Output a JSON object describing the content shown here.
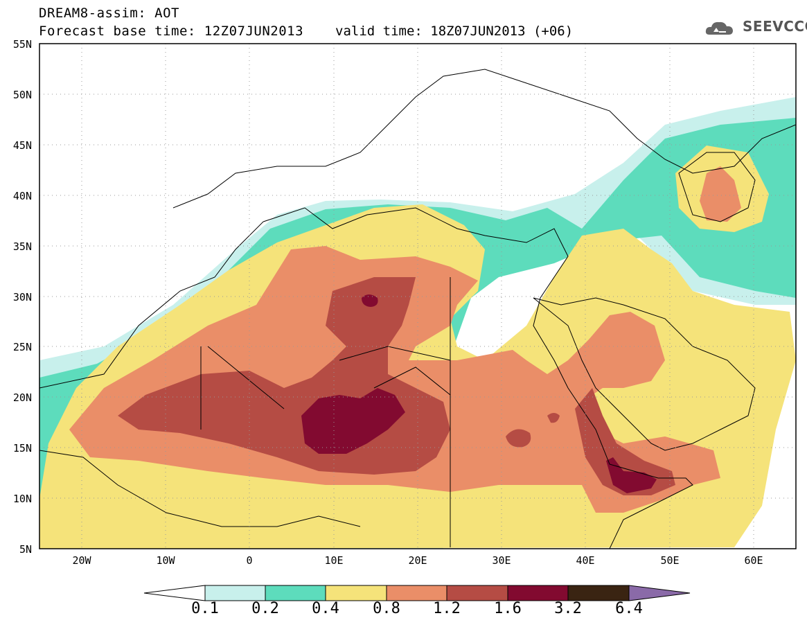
{
  "header": {
    "title_line1": "DREAM8-assim: AOT",
    "title_line2": "Forecast base time: 12Z07JUN2013",
    "valid_time": "valid time: 18Z07JUN2013 (+06)",
    "logo_text": "SEEVCCC"
  },
  "axes": {
    "lat_labels": [
      "55N",
      "50N",
      "45N",
      "40N",
      "35N",
      "30N",
      "25N",
      "20N",
      "15N",
      "10N",
      "5N"
    ],
    "lon_labels": [
      "20W",
      "10W",
      "0",
      "10E",
      "20E",
      "30E",
      "40E",
      "50E",
      "60E"
    ],
    "lon_range": [
      -25,
      65
    ],
    "lat_range": [
      5,
      55
    ],
    "gridlines": "dotted"
  },
  "colorbar": {
    "levels": [
      "0.1",
      "0.2",
      "0.4",
      "0.8",
      "1.2",
      "1.6",
      "3.2",
      "6.4"
    ],
    "colors": [
      "#c8f0ec",
      "#5ddcbc",
      "#f5e37a",
      "#ea8e68",
      "#b54c44",
      "#820a30",
      "#3a2412",
      "#8a6aa8"
    ],
    "under_color": "#ffffff"
  }
}
